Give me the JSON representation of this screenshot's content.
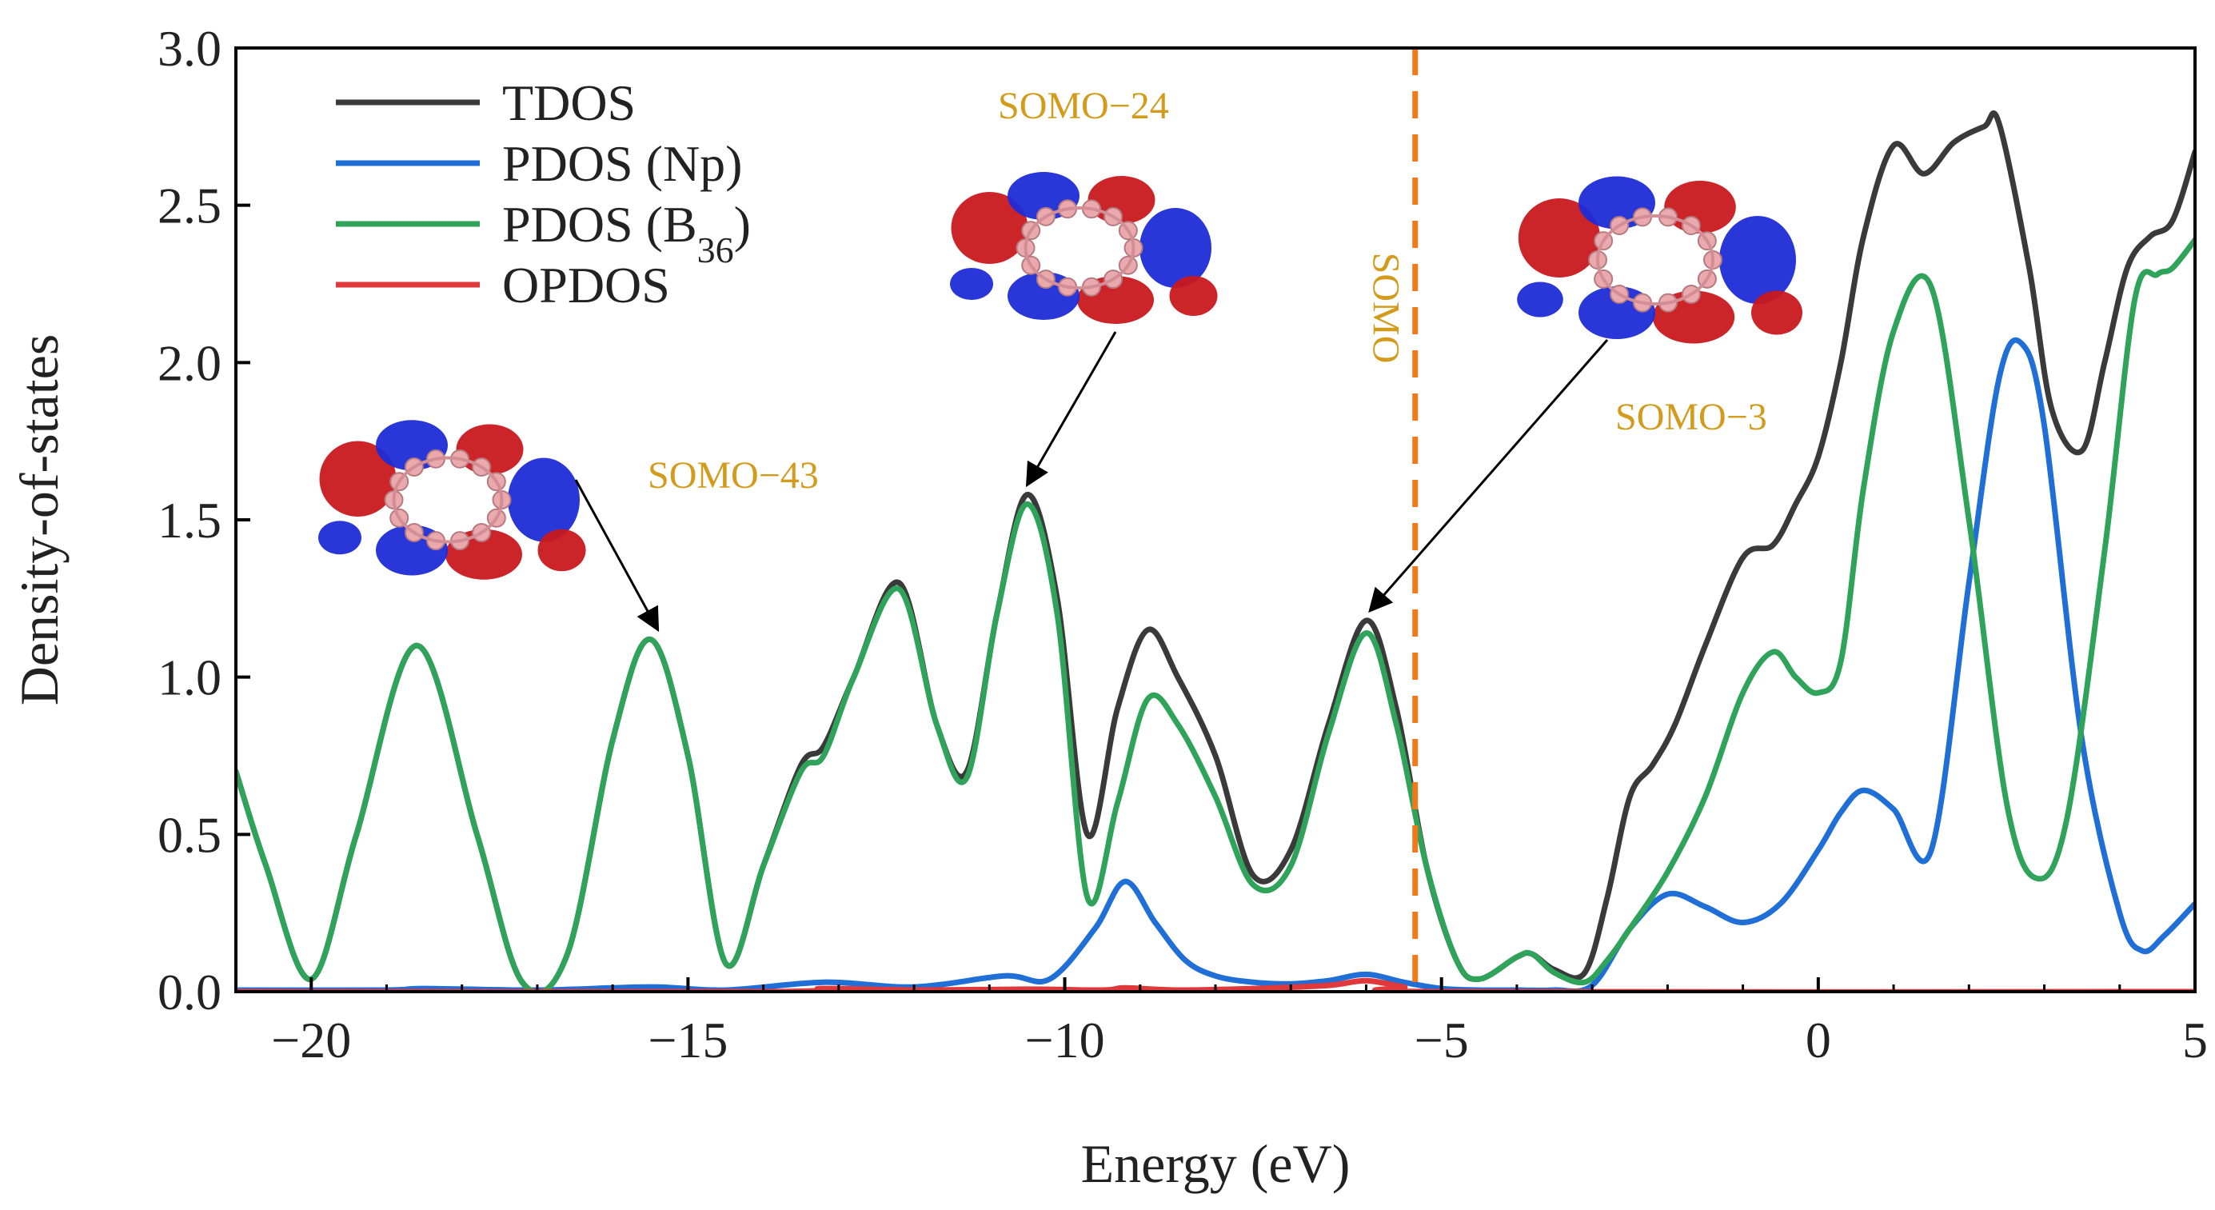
{
  "chart_data": {
    "type": "line",
    "title": "",
    "xlabel": "Energy (eV)",
    "ylabel": "Density-of-states",
    "xlim": [
      -21,
      5
    ],
    "ylim": [
      0,
      3.0
    ],
    "x_ticks": [
      "−20",
      "−15",
      "−10",
      "−5",
      "0",
      "5"
    ],
    "x_tick_values": [
      -20,
      -15,
      -10,
      -5,
      0,
      5
    ],
    "y_ticks": [
      "0.0",
      "0.5",
      "1.0",
      "1.5",
      "2.0",
      "2.5",
      "3.0"
    ],
    "y_tick_values": [
      0,
      0.5,
      1.0,
      1.5,
      2.0,
      2.5,
      3.0
    ],
    "legend_position": "top-left",
    "series": [
      {
        "name": "TDOS",
        "color": "#3a3a3a",
        "x": [
          -21,
          -20.6,
          -20.0,
          -19.4,
          -18.6,
          -17.8,
          -17.2,
          -16.6,
          -16.0,
          -15.5,
          -15.0,
          -14.5,
          -14.0,
          -13.5,
          -13.2,
          -12.8,
          -12.2,
          -11.7,
          -11.3,
          -10.9,
          -10.5,
          -10.1,
          -9.7,
          -9.3,
          -8.9,
          -8.5,
          -8.0,
          -7.5,
          -7.0,
          -6.5,
          -6.0,
          -5.6,
          -5.2,
          -4.8,
          -4.5,
          -4.0,
          -3.8,
          -3.5,
          -3.1,
          -2.8,
          -2.5,
          -2.2,
          -1.9,
          -1.5,
          -1.0,
          -0.6,
          -0.3,
          0.0,
          0.3,
          0.6,
          1.0,
          1.4,
          1.8,
          2.2,
          2.4,
          2.8,
          3.1,
          3.5,
          3.8,
          4.1,
          4.4,
          4.7,
          5.0
        ],
        "values": [
          0.7,
          0.4,
          0.04,
          0.5,
          1.1,
          0.5,
          0.03,
          0.12,
          0.8,
          1.12,
          0.75,
          0.09,
          0.4,
          0.72,
          0.78,
          1.0,
          1.3,
          0.85,
          0.7,
          1.2,
          1.58,
          1.25,
          0.5,
          0.9,
          1.15,
          1.0,
          0.75,
          0.37,
          0.45,
          0.85,
          1.18,
          0.9,
          0.4,
          0.1,
          0.04,
          0.11,
          0.12,
          0.07,
          0.06,
          0.3,
          0.62,
          0.72,
          0.85,
          1.1,
          1.38,
          1.42,
          1.55,
          1.7,
          2.0,
          2.4,
          2.69,
          2.6,
          2.7,
          2.75,
          2.76,
          2.3,
          1.85,
          1.72,
          2.0,
          2.3,
          2.4,
          2.45,
          2.67
        ]
      },
      {
        "name": "PDOS (Np)",
        "color": "#1f6fd6",
        "x": [
          -21,
          -19,
          -18.5,
          -17,
          -15.5,
          -14.5,
          -13.2,
          -12,
          -10.8,
          -10.2,
          -9.6,
          -9.2,
          -8.8,
          -8.4,
          -8.0,
          -7.5,
          -7.0,
          -6.5,
          -6.0,
          -5.5,
          -5.0,
          -4.5,
          -4.0,
          -3.5,
          -3.0,
          -2.5,
          -2.0,
          -1.5,
          -1.0,
          -0.5,
          0.0,
          0.3,
          0.6,
          1.0,
          1.5,
          2.0,
          2.4,
          2.7,
          3.0,
          3.5,
          4.0,
          4.3,
          4.6,
          5.0
        ],
        "values": [
          0.005,
          0.005,
          0.01,
          0.005,
          0.015,
          0.005,
          0.03,
          0.015,
          0.05,
          0.04,
          0.2,
          0.35,
          0.22,
          0.1,
          0.05,
          0.03,
          0.025,
          0.035,
          0.055,
          0.03,
          0.01,
          0.005,
          0.005,
          0.005,
          0.02,
          0.2,
          0.31,
          0.27,
          0.22,
          0.28,
          0.45,
          0.57,
          0.64,
          0.58,
          0.45,
          1.3,
          1.95,
          2.06,
          1.8,
          0.8,
          0.25,
          0.13,
          0.18,
          0.28
        ]
      },
      {
        "name": "PDOS (B36)",
        "color": "#2fa35a",
        "x": [
          -21,
          -20.6,
          -20.0,
          -19.4,
          -18.6,
          -17.8,
          -17.2,
          -16.6,
          -16.0,
          -15.5,
          -15.0,
          -14.5,
          -14.0,
          -13.5,
          -13.2,
          -12.8,
          -12.2,
          -11.7,
          -11.3,
          -10.9,
          -10.5,
          -10.1,
          -9.7,
          -9.3,
          -8.9,
          -8.5,
          -8.0,
          -7.5,
          -7.0,
          -6.5,
          -6.0,
          -5.6,
          -5.2,
          -4.8,
          -4.5,
          -4.0,
          -3.8,
          -3.5,
          -3.1,
          -2.8,
          -2.5,
          -2.0,
          -1.5,
          -1.0,
          -0.6,
          -0.3,
          0.0,
          0.3,
          0.6,
          1.0,
          1.5,
          2.0,
          2.5,
          2.9,
          3.3,
          3.8,
          4.2,
          4.5,
          4.7,
          5.0
        ],
        "values": [
          0.7,
          0.4,
          0.04,
          0.5,
          1.1,
          0.5,
          0.03,
          0.12,
          0.8,
          1.12,
          0.75,
          0.09,
          0.4,
          0.7,
          0.75,
          1.0,
          1.28,
          0.85,
          0.68,
          1.2,
          1.55,
          1.2,
          0.3,
          0.6,
          0.93,
          0.85,
          0.62,
          0.34,
          0.4,
          0.82,
          1.14,
          0.85,
          0.4,
          0.1,
          0.04,
          0.11,
          0.12,
          0.06,
          0.03,
          0.1,
          0.2,
          0.38,
          0.62,
          0.95,
          1.08,
          1.0,
          0.95,
          1.05,
          1.6,
          2.1,
          2.24,
          1.5,
          0.6,
          0.36,
          0.55,
          1.4,
          2.2,
          2.28,
          2.3,
          2.39
        ]
      },
      {
        "name": "OPDOS",
        "color": "#e0393b",
        "x": [
          -21,
          -14,
          -13.2,
          -12,
          -10.5,
          -9.5,
          -9.2,
          -8.5,
          -7.5,
          -6.5,
          -6.0,
          -5.5,
          -5.0,
          5.0
        ],
        "values": [
          0.0,
          0.0,
          0.01,
          0.005,
          0.008,
          0.005,
          0.012,
          0.005,
          0.01,
          0.02,
          0.035,
          0.015,
          0.0,
          0.0
        ]
      }
    ],
    "somo_line": {
      "x": -5.35,
      "color": "#f07a1a",
      "label": "SOMO"
    },
    "annotations": [
      {
        "text": "SOMO−43",
        "target_x": -15.4,
        "target_y": 1.12
      },
      {
        "text": "SOMO−24",
        "target_x": -10.5,
        "target_y": 1.58
      },
      {
        "text": "SOMO−3",
        "target_x": -5.95,
        "target_y": 1.18
      }
    ]
  },
  "legend": {
    "items": [
      {
        "label": "TDOS",
        "color": "#3a3a3a"
      },
      {
        "label": "PDOS (Np)",
        "color": "#1f6fd6"
      },
      {
        "label": "PDOS (B",
        "sub": "36",
        "suffix": ")",
        "color": "#2fa35a"
      },
      {
        "label": "OPDOS",
        "color": "#e0393b"
      }
    ]
  }
}
